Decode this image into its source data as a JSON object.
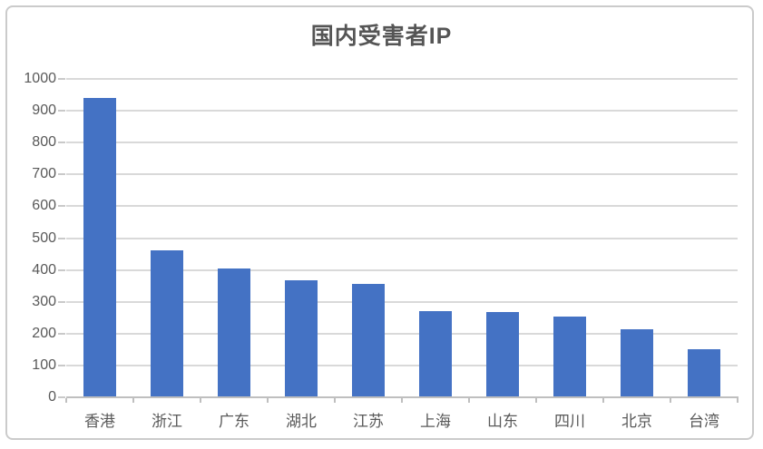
{
  "chart_data": {
    "type": "bar",
    "title": "国内受害者IP",
    "categories": [
      "香港",
      "浙江",
      "广东",
      "湖北",
      "江苏",
      "上海",
      "山东",
      "四川",
      "北京",
      "台湾"
    ],
    "values": [
      940,
      462,
      405,
      368,
      355,
      272,
      268,
      253,
      215,
      152
    ],
    "xlabel": "",
    "ylabel": "",
    "ylim": [
      0,
      1000
    ],
    "ytick_step": 100,
    "ytick_labels": [
      "0",
      "100",
      "200",
      "300",
      "400",
      "500",
      "600",
      "700",
      "800",
      "900",
      "1000"
    ],
    "grid": true,
    "legend_position": "none",
    "colors": {
      "bar": "#4472c4",
      "gridline": "#d9d9d9",
      "axis_line": "#bfbfbf",
      "tick": "#c9c9c9",
      "axis_label": "#595959",
      "title": "#555555",
      "frame_border": "#cbcbcb",
      "background": "#ffffff"
    }
  }
}
